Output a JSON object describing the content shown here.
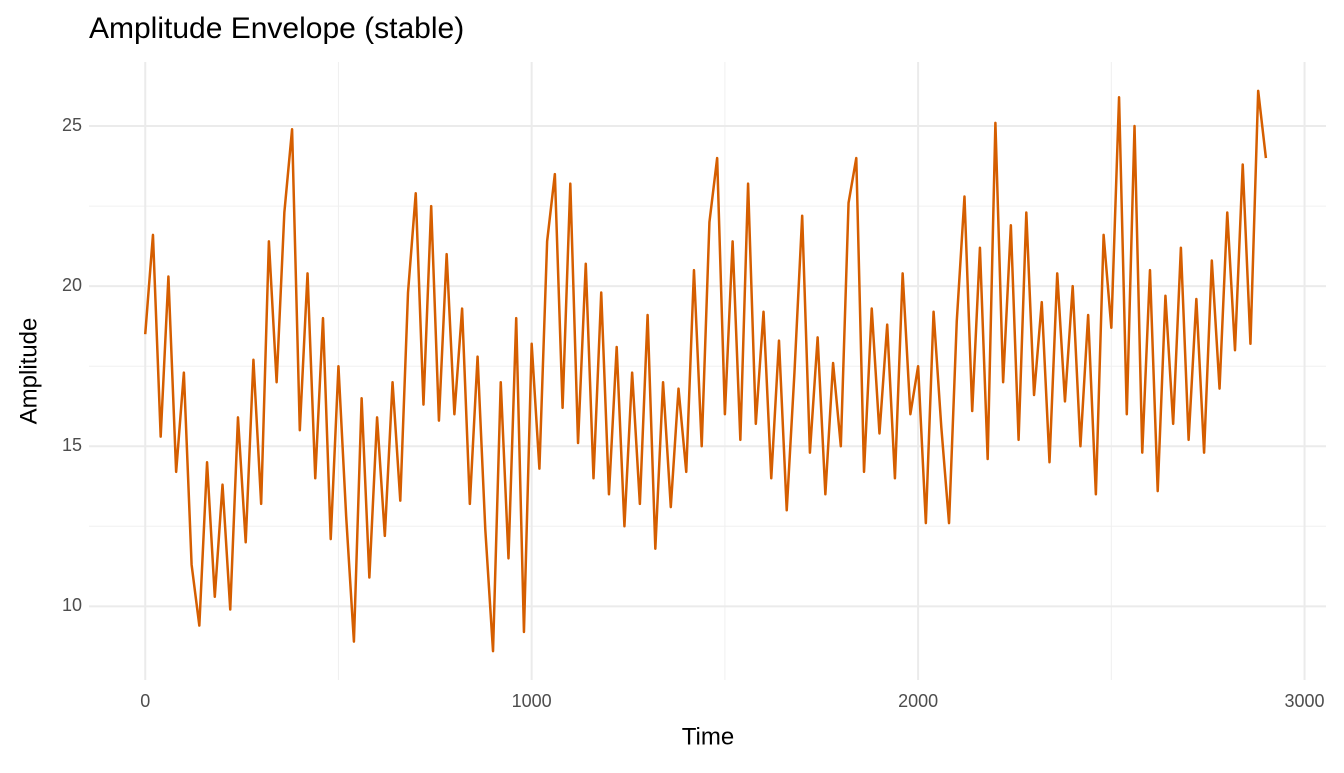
{
  "chart_data": {
    "type": "line",
    "title": "Amplitude Envelope (stable)",
    "x_label": "Time",
    "y_label": "Amplitude",
    "x": [
      0,
      20,
      40,
      60,
      80,
      100,
      120,
      140,
      160,
      180,
      200,
      220,
      240,
      260,
      280,
      300,
      320,
      340,
      360,
      380,
      400,
      420,
      440,
      460,
      480,
      500,
      520,
      540,
      560,
      580,
      600,
      620,
      640,
      660,
      680,
      700,
      720,
      740,
      760,
      780,
      800,
      820,
      840,
      860,
      880,
      900,
      920,
      940,
      960,
      980,
      1000,
      1020,
      1040,
      1060,
      1080,
      1100,
      1120,
      1140,
      1160,
      1180,
      1200,
      1220,
      1240,
      1260,
      1280,
      1300,
      1320,
      1340,
      1360,
      1380,
      1400,
      1420,
      1440,
      1460,
      1480,
      1500,
      1520,
      1540,
      1560,
      1580,
      1600,
      1620,
      1640,
      1660,
      1680,
      1700,
      1720,
      1740,
      1760,
      1780,
      1800,
      1820,
      1840,
      1860,
      1880,
      1900,
      1920,
      1940,
      1960,
      1980,
      2000,
      2020,
      2040,
      2060,
      2080,
      2100,
      2120,
      2140,
      2160,
      2180,
      2200,
      2220,
      2240,
      2260,
      2280,
      2300,
      2320,
      2340,
      2360,
      2380,
      2400,
      2420,
      2440,
      2460,
      2480,
      2500,
      2520,
      2540,
      2560,
      2580,
      2600,
      2620,
      2640,
      2660,
      2680,
      2700,
      2720,
      2740,
      2760,
      2780,
      2800,
      2820,
      2840,
      2860,
      2880,
      2900
    ],
    "series": [
      {
        "name": "Amplitude",
        "color": "#d55e00",
        "values": [
          18.5,
          21.6,
          15.3,
          20.3,
          14.2,
          17.3,
          11.3,
          9.4,
          14.5,
          10.3,
          13.8,
          9.9,
          15.9,
          12.0,
          17.7,
          13.2,
          21.4,
          17.0,
          22.3,
          24.9,
          15.5,
          20.4,
          14.0,
          19.0,
          12.1,
          17.5,
          12.8,
          8.9,
          16.5,
          10.9,
          15.9,
          12.2,
          17.0,
          13.3,
          19.8,
          22.9,
          16.3,
          22.5,
          15.8,
          21.0,
          16.0,
          19.3,
          13.2,
          17.8,
          12.4,
          8.6,
          17.0,
          11.5,
          19.0,
          9.2,
          18.2,
          14.3,
          21.4,
          23.5,
          16.2,
          23.2,
          15.1,
          20.7,
          14.0,
          19.8,
          13.5,
          18.1,
          12.5,
          17.3,
          13.2,
          19.1,
          11.8,
          17.0,
          13.1,
          16.8,
          14.2,
          20.5,
          15.0,
          22.0,
          24.0,
          16.0,
          21.4,
          15.2,
          23.2,
          15.7,
          19.2,
          14.0,
          18.3,
          13.0,
          17.3,
          22.2,
          14.8,
          18.4,
          13.5,
          17.6,
          15.0,
          22.6,
          24.0,
          14.2,
          19.3,
          15.4,
          18.8,
          14.0,
          20.4,
          16.0,
          17.5,
          12.6,
          19.2,
          15.6,
          12.6,
          18.9,
          22.8,
          16.1,
          21.2,
          14.6,
          25.1,
          17.0,
          21.9,
          15.2,
          22.3,
          16.6,
          19.5,
          14.5,
          20.4,
          16.4,
          20.0,
          15.0,
          19.1,
          13.5,
          21.6,
          18.7,
          25.9,
          16.0,
          25.0,
          14.8,
          20.5,
          13.6,
          19.7,
          15.7,
          21.2,
          15.2,
          19.6,
          14.8,
          20.8,
          16.8,
          22.3,
          18.0,
          23.8,
          18.2,
          26.1,
          24.0
        ]
      }
    ],
    "xlim": [
      -145.5,
      3055.5
    ],
    "xticks": [
      0,
      1000,
      2000,
      3000
    ],
    "xminorticks": [
      500,
      1500,
      2500
    ],
    "ylim": [
      7.7,
      27.0
    ],
    "yticks": [
      10,
      15,
      20,
      25
    ],
    "yminorticks": [
      12.5,
      17.5,
      22.5
    ],
    "grid": true
  }
}
